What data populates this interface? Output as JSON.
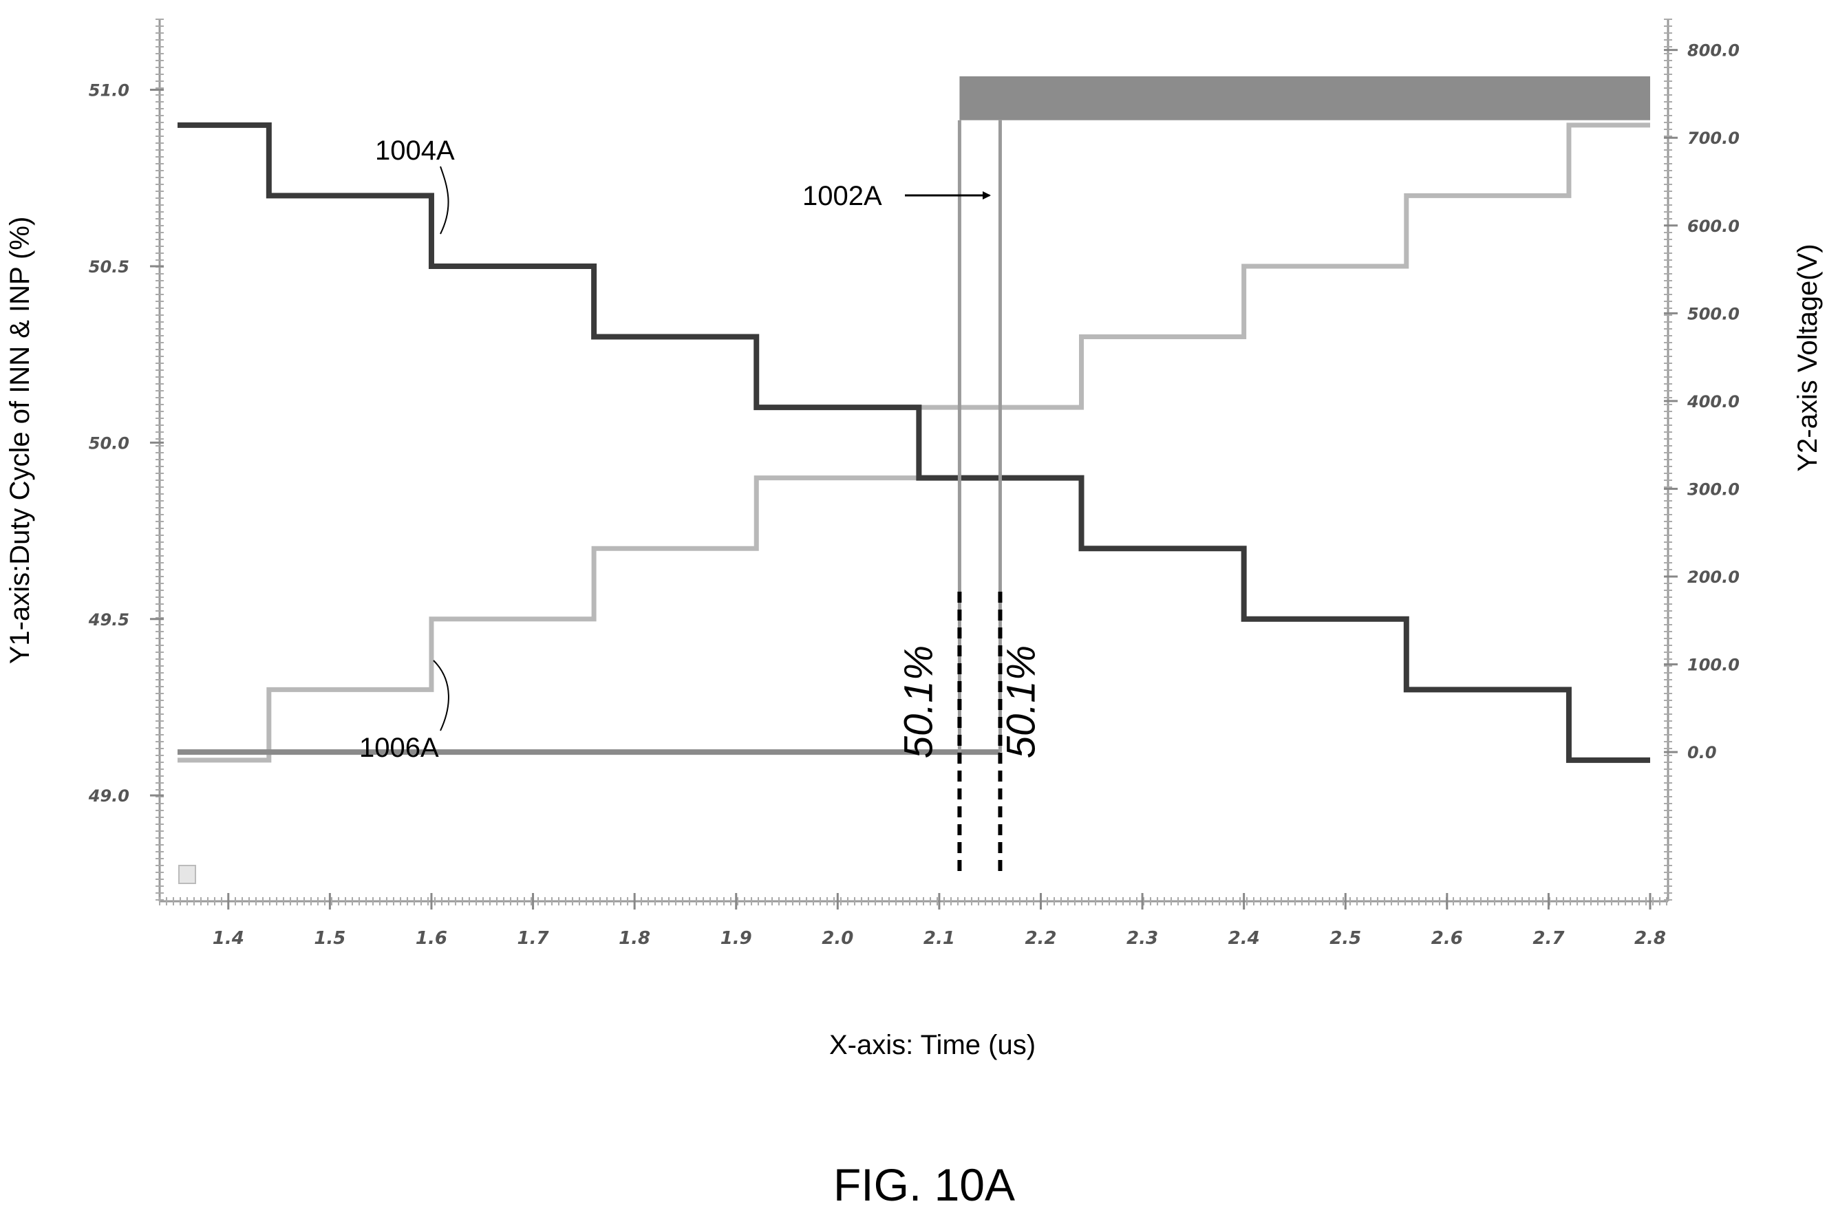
{
  "figure": {
    "caption": "FIG. 10A"
  },
  "chart_data": {
    "type": "line",
    "title": "",
    "xlabel": "X-axis: Time (us)",
    "ylabel": "Y1-axis:Duty Cycle of INN & INP  (%)",
    "y2label": "Y2-axis Voltage(V)",
    "xlim": [
      1.35,
      2.8
    ],
    "ylim": [
      48.7,
      51.2
    ],
    "y2lim": [
      -170,
      835
    ],
    "x_ticks": [
      "1.4",
      "1.5",
      "1.6",
      "1.7",
      "1.8",
      "1.9",
      "2.0",
      "2.1",
      "2.2",
      "2.3",
      "2.4",
      "2.5",
      "2.6",
      "2.7",
      "2.8"
    ],
    "y_ticks": [
      "49.0",
      "49.5",
      "50.0",
      "50.5",
      "51.0"
    ],
    "y2_ticks": [
      "0.0",
      "100.0",
      "200.0",
      "300.0",
      "400.0",
      "500.0",
      "600.0",
      "700.0",
      "800.0"
    ],
    "grid": false,
    "legend": "none",
    "series": [
      {
        "name": "1004A",
        "color": "#3a3a3a",
        "axis": "y1",
        "step_x": [
          1.35,
          1.44,
          1.6,
          1.76,
          1.92,
          2.08,
          2.24,
          2.4,
          2.56,
          2.72,
          2.8
        ],
        "step_y": [
          50.9,
          50.7,
          50.5,
          50.3,
          50.1,
          49.9,
          49.7,
          49.5,
          49.3,
          49.1
        ]
      },
      {
        "name": "1006A",
        "color": "#b8b8b8",
        "axis": "y1",
        "step_x": [
          1.35,
          1.44,
          1.6,
          1.76,
          1.92,
          2.08,
          2.24,
          2.4,
          2.56,
          2.72,
          2.8
        ],
        "step_y": [
          49.1,
          49.3,
          49.5,
          49.7,
          49.9,
          50.1,
          50.3,
          50.5,
          50.7,
          50.9
        ]
      },
      {
        "name": "1002A",
        "color": "#808080",
        "axis": "y2",
        "x": [
          1.35,
          2.12,
          2.12,
          2.16,
          2.16,
          2.8
        ],
        "y": [
          0,
          0,
          760,
          760,
          760,
          760
        ],
        "band_y2": [
          720,
          770
        ],
        "band_x": [
          2.12,
          2.8
        ],
        "edges_x": [
          2.12,
          2.16
        ]
      }
    ],
    "markers": [
      {
        "x": 2.12,
        "label": "50.1%"
      },
      {
        "x": 2.16,
        "label": "50.1%"
      }
    ],
    "annotations": [
      {
        "label": "1004A"
      },
      {
        "label": "1006A"
      },
      {
        "label": "1002A"
      }
    ]
  }
}
